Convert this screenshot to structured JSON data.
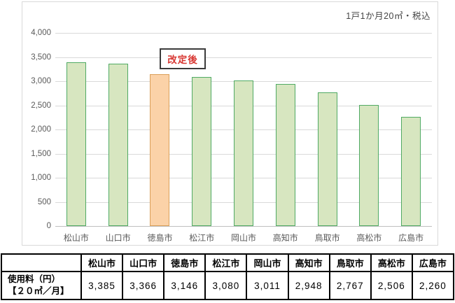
{
  "chart": {
    "note": "1戸1か月20㎥・税込",
    "annotation": "改定後"
  },
  "chart_data": {
    "type": "bar",
    "title": "",
    "note": "1戸1か月20㎥・税込",
    "categories": [
      "松山市",
      "山口市",
      "徳島市",
      "松江市",
      "岡山市",
      "高知市",
      "鳥取市",
      "高松市",
      "広島市"
    ],
    "values": [
      3385,
      3366,
      3146,
      3080,
      3011,
      2948,
      2767,
      2506,
      2260
    ],
    "highlight_index": 2,
    "highlighted_category": "徳島市",
    "annotation_label": "改定後",
    "xlabel": "",
    "ylabel": "",
    "ylim": [
      0,
      4000
    ],
    "ytick_interval": 500,
    "ytick_labels_top_to_bottom": [
      "4,000",
      "3,500",
      "3,000",
      "2,500",
      "2,000",
      "1,500",
      "1,000",
      "500",
      "0"
    ],
    "grid": true,
    "legend": "none",
    "colors": {
      "bar_fill": "#d7e6c0",
      "bar_border": "#50aa64",
      "highlight_fill": "#fbd2a8",
      "highlight_border": "#dba05a",
      "annotation_text": "#d83732",
      "gridline": "#d9d9d9"
    }
  },
  "table": {
    "corner_cell": "",
    "columns": [
      "松山市",
      "山口市",
      "徳島市",
      "松江市",
      "岡山市",
      "高知市",
      "鳥取市",
      "高松市",
      "広島市"
    ],
    "row_header_line1": "使用料（円）",
    "row_header_line2": "【２０㎥／月】",
    "values": [
      "3,385",
      "3,366",
      "3,146",
      "3,080",
      "3,011",
      "2,948",
      "2,767",
      "2,506",
      "2,260"
    ]
  }
}
